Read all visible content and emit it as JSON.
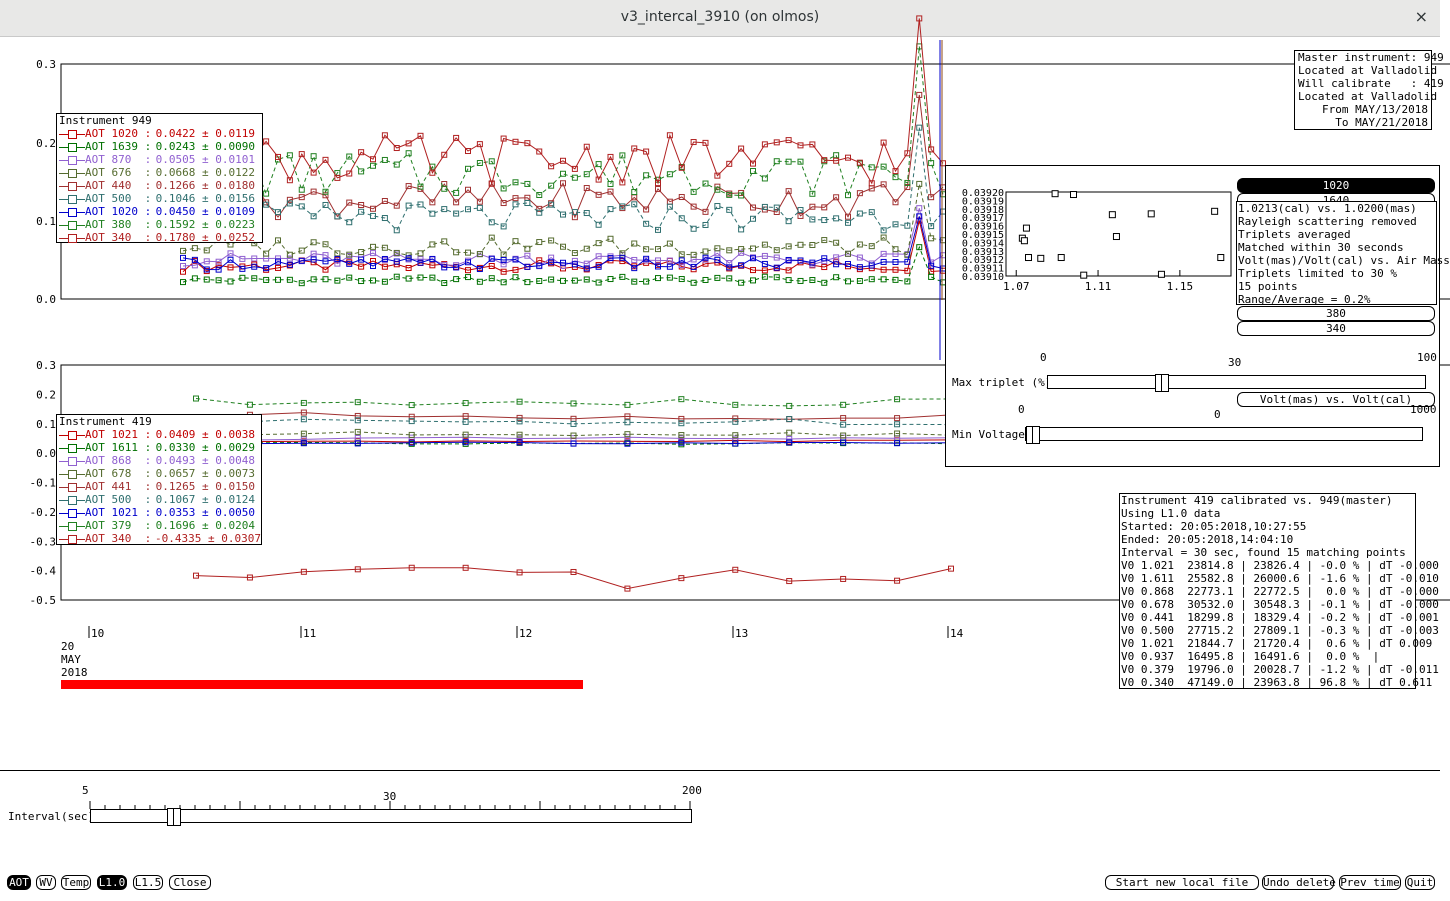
{
  "window": {
    "title": "v3_intercal_3910 (on olmos)",
    "close_glyph": "×"
  },
  "top_plot": {
    "y_ticks": [
      "0.3",
      "0.2",
      "0.1",
      "0.0"
    ],
    "legend_title": "Instrument 949",
    "legend": [
      {
        "label": "AOT 1020 :",
        "value": "0.0422 ± 0.0119",
        "color": "#c00000"
      },
      {
        "label": "AOT 1639 :",
        "value": "0.0243 ± 0.0090",
        "color": "#007000"
      },
      {
        "label": "AOT 870  :",
        "value": "0.0505 ± 0.0101",
        "color": "#9060d0"
      },
      {
        "label": "AOT 676  :",
        "value": "0.0668 ± 0.0122",
        "color": "#556b2f"
      },
      {
        "label": "AOT 440  :",
        "value": "0.1266 ± 0.0180",
        "color": "#a03030"
      },
      {
        "label": "AOT 500  :",
        "value": "0.1046 ± 0.0156",
        "color": "#2f6f6f"
      },
      {
        "label": "AOT 1020 :",
        "value": "0.0450 ± 0.0109",
        "color": "#0000cc"
      },
      {
        "label": "AOT 380  :",
        "value": "0.1592 ± 0.0223",
        "color": "#208020"
      },
      {
        "label": "AOT 340  :",
        "value": "0.1780 ± 0.0252",
        "color": "#b02020"
      }
    ]
  },
  "bottom_plot": {
    "y_ticks": [
      "0.3",
      "0.2",
      "0.1",
      "0.0",
      "-0.1",
      "-0.2",
      "-0.3",
      "-0.4",
      "-0.5"
    ],
    "legend_title": "Instrument 419",
    "legend": [
      {
        "label": "AOT 1021 :",
        "value": "0.0409 ± 0.0038",
        "color": "#c00000"
      },
      {
        "label": "AOT 1611 :",
        "value": "0.0330 ± 0.0029",
        "color": "#007000"
      },
      {
        "label": "AOT 868  :",
        "value": "0.0493 ± 0.0048",
        "color": "#9060d0"
      },
      {
        "label": "AOT 678  :",
        "value": "0.0657 ± 0.0073",
        "color": "#556b2f"
      },
      {
        "label": "AOT 441  :",
        "value": "0.1265 ± 0.0150",
        "color": "#a03030"
      },
      {
        "label": "AOT 500  :",
        "value": "0.1067 ± 0.0124",
        "color": "#2f6f6f"
      },
      {
        "label": "AOT 1021 :",
        "value": "0.0353 ± 0.0050",
        "color": "#0000cc"
      },
      {
        "label": "AOT 379  :",
        "value": "0.1696 ± 0.0204",
        "color": "#208020"
      },
      {
        "label": "AOT 340  :",
        "value": "-0.4335 ± 0.0307",
        "color": "#b02020"
      }
    ]
  },
  "x_axis": {
    "ticks": [
      "10",
      "11",
      "12",
      "13",
      "14"
    ],
    "date_label": [
      "20",
      "MAY",
      "2018"
    ]
  },
  "master_info": [
    "Master instrument: 949",
    "Located at Valladolid",
    "Will calibrate   : 419",
    "Located at Valladolid",
    "From MAY/13/2018",
    "To MAY/21/2018"
  ],
  "calib_panel": {
    "scatter_y_ticks": [
      "0.03920",
      "0.03919",
      "0.03918",
      "0.03917",
      "0.03916",
      "0.03915",
      "0.03914",
      "0.03913",
      "0.03912",
      "0.03911",
      "0.03910"
    ],
    "scatter_x_ticks": [
      "1.07",
      "1.11",
      "1.15"
    ],
    "scatter_points": [
      [
        1.073,
        0.039145
      ],
      [
        1.075,
        0.039157
      ],
      [
        1.074,
        0.039142
      ],
      [
        1.076,
        0.039122
      ],
      [
        1.082,
        0.039121
      ],
      [
        1.089,
        0.039198
      ],
      [
        1.092,
        0.039122
      ],
      [
        1.098,
        0.039197
      ],
      [
        1.103,
        0.039101
      ],
      [
        1.117,
        0.039173
      ],
      [
        1.119,
        0.039147
      ],
      [
        1.136,
        0.039174
      ],
      [
        1.141,
        0.039102
      ],
      [
        1.167,
        0.039177
      ],
      [
        1.17,
        0.039122
      ]
    ],
    "wavelength_buttons": [
      "1020",
      "1640",
      "380",
      "340"
    ],
    "selected_wavelength": "1020",
    "info": [
      "1.0213(cal) vs. 1.0200(mas)",
      "Rayleigh scattering removed",
      "Triplets averaged",
      "Matched within 30 seconds",
      "Volt(mas)/Volt(cal) vs. Air Mass",
      "Triplets limited to 30 %",
      "15 points",
      "Range/Average = 0.2%"
    ],
    "mode_button": "Volt(mas) vs. Volt(cal)",
    "max_triplet": {
      "label": "Max triplet (%)",
      "min": "0",
      "mid": "30",
      "max": "100",
      "value": 30
    },
    "min_voltage": {
      "label": "Min Voltage",
      "min": "0",
      "mid": "0",
      "max": "1000",
      "value": 0
    }
  },
  "results": [
    "Instrument 419 calibrated vs. 949(master)",
    "Using L1.0 data",
    "Started: 20:05:2018,10:27:55",
    "Ended: 20:05:2018,14:04:10",
    "Interval = 30 sec, found 15 matching points",
    "V0 1.021  23814.8 | 23826.4 | -0.0 % | dT -0.000",
    "V0 1.611  25582.8 | 26000.6 | -1.6 % | dT -0.010",
    "V0 0.868  22773.1 | 22772.5 |  0.0 % | dT -0.000",
    "V0 0.678  30532.0 | 30548.3 | -0.1 % | dT -0.000",
    "V0 0.441  18299.8 | 18329.4 | -0.2 % | dT -0.001",
    "V0 0.500  27715.2 | 27809.1 | -0.3 % | dT -0.003",
    "V0 1.021  21844.7 | 21720.4 |  0.6 % | dT 0.009",
    "V0 0.937  16495.8 | 16491.6 |  0.0 %  |",
    "V0 0.379  19796.0 | 20028.7 | -1.2 % | dT -0.011",
    "V0 0.340  47149.0 | 23963.8 | 96.8 % | dT 0.611"
  ],
  "interval_slider": {
    "label": "Interval(sec)",
    "min": "5",
    "mid": "30",
    "max": "200",
    "value": 30
  },
  "bottom_left_buttons": [
    "AOT",
    "WV",
    "Temp",
    "L1.0",
    "L1.5",
    "Close"
  ],
  "bottom_right_buttons": [
    "Start new local file",
    "Undo delete",
    "Prev time",
    "Quit"
  ]
}
